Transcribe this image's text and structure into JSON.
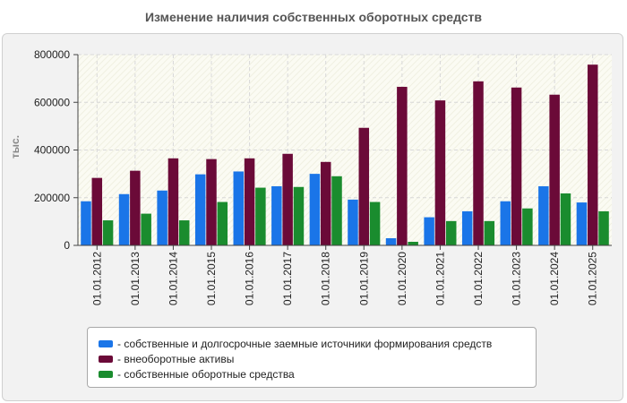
{
  "chart_data": {
    "type": "bar",
    "title": "Изменение наличия собственных оборотных средств",
    "ylabel": "тыс.",
    "xlabel": "",
    "ylim": [
      0,
      800000
    ],
    "yticks": [
      0,
      200000,
      400000,
      600000,
      800000
    ],
    "grid": true,
    "legend_position": "bottom",
    "categories": [
      "01.01.2012",
      "01.01.2013",
      "01.01.2014",
      "01.01.2015",
      "01.01.2016",
      "01.01.2017",
      "01.01.2018",
      "01.01.2019",
      "01.01.2020",
      "01.01.2021",
      "01.01.2022",
      "01.01.2023",
      "01.01.2024",
      "01.01.2025"
    ],
    "series": [
      {
        "name": "- собственные и долгосрочные заемные источники формирования средств",
        "color": "#1a75e8",
        "values": [
          185000,
          215000,
          230000,
          298000,
          310000,
          248000,
          300000,
          192000,
          30000,
          118000,
          143000,
          185000,
          248000,
          180000
        ]
      },
      {
        "name": "- внеоборотные активы",
        "color": "#6b0a38",
        "values": [
          283000,
          313000,
          365000,
          362000,
          365000,
          384000,
          350000,
          493000,
          665000,
          608000,
          688000,
          662000,
          632000,
          758000
        ]
      },
      {
        "name": "- собственные оборотные средства",
        "color": "#1a8c2e",
        "values": [
          105000,
          133000,
          105000,
          182000,
          242000,
          245000,
          290000,
          182000,
          15000,
          102000,
          102000,
          155000,
          218000,
          143000
        ]
      }
    ]
  }
}
